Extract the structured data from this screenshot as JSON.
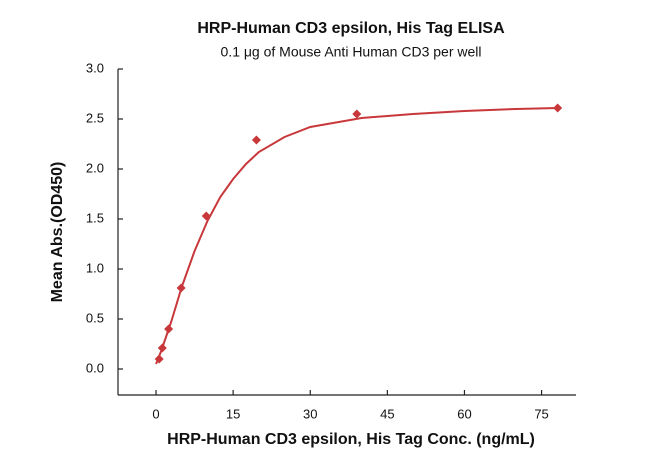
{
  "chart_data": {
    "type": "scatter",
    "title": "HRP-Human CD3 epsilon, His Tag ELISA",
    "subtitle": "0.1 μg of Mouse Anti Human CD3 per well",
    "x_label": "HRP-Human CD3 epsilon, His Tag Conc. (ng/mL)",
    "y_label": "Mean Abs.(OD450)",
    "xlim": [
      -7.4,
      81.7
    ],
    "ylim": [
      -0.26,
      3.0
    ],
    "xticks": [
      0,
      15,
      30,
      45,
      60,
      75
    ],
    "yticks": [
      {
        "value": 0,
        "label": "0.0"
      },
      {
        "value": 0.5,
        "label": "0.5"
      },
      {
        "value": 1,
        "label": "1.0"
      },
      {
        "value": 1.5,
        "label": "1.5"
      },
      {
        "value": 2,
        "label": "2.0"
      },
      {
        "value": 2.5,
        "label": "2.5"
      },
      {
        "value": 3,
        "label": "3.0"
      }
    ],
    "series": [
      {
        "type": "scatter",
        "color": "#c8383b",
        "x": [
          0.61,
          1.22,
          2.44,
          4.88,
          9.77,
          19.53,
          39.06,
          78.13
        ],
        "values": [
          0.1,
          0.21,
          0.4,
          0.81,
          1.53,
          2.29,
          2.55,
          2.61
        ]
      },
      {
        "type": "line",
        "color": "#c8383b",
        "x": [
          0,
          1,
          2,
          3,
          5,
          7.5,
          10,
          12.5,
          15,
          17.5,
          20,
          25,
          30,
          40,
          50,
          60,
          70,
          78.13
        ],
        "values": [
          0.05,
          0.18,
          0.33,
          0.48,
          0.82,
          1.18,
          1.48,
          1.72,
          1.9,
          2.05,
          2.17,
          2.32,
          2.42,
          2.51,
          2.55,
          2.58,
          2.6,
          2.61
        ]
      }
    ]
  }
}
